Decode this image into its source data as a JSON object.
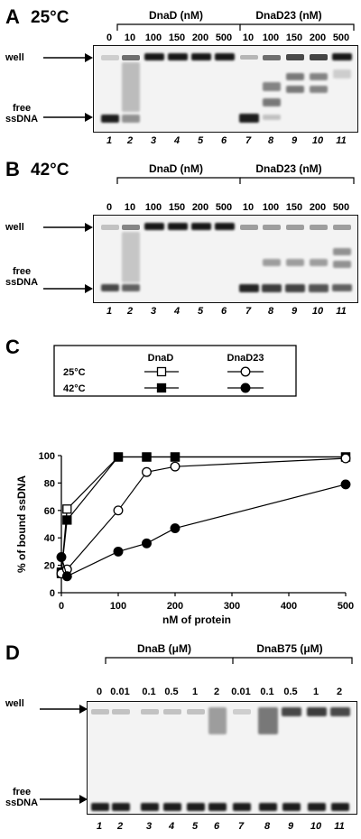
{
  "panelA": {
    "letter": "A",
    "temp": "25°C",
    "group1": "DnaD (nM)",
    "group2": "DnaD23 (nM)",
    "concs": [
      "0",
      "10",
      "100",
      "150",
      "200",
      "500",
      "10",
      "100",
      "150",
      "200",
      "500"
    ],
    "lanes": [
      "1",
      "2",
      "3",
      "4",
      "5",
      "6",
      "7",
      "8",
      "9",
      "10",
      "11"
    ],
    "well": "well",
    "free1": "free",
    "free2": "ssDNA"
  },
  "panelB": {
    "letter": "B",
    "temp": "42°C",
    "group1": "DnaD (nM)",
    "group2": "DnaD23 (nM)",
    "concs": [
      "0",
      "10",
      "100",
      "150",
      "200",
      "500",
      "10",
      "100",
      "150",
      "200",
      "500"
    ],
    "lanes": [
      "1",
      "2",
      "3",
      "4",
      "5",
      "6",
      "7",
      "8",
      "9",
      "10",
      "11"
    ],
    "well": "well",
    "free1": "free",
    "free2": "ssDNA"
  },
  "panelC": {
    "letter": "C",
    "legend": {
      "col1": "DnaD",
      "col2": "DnaD23",
      "row1": "25°C",
      "row2": "42°C"
    }
  },
  "chart_data": {
    "type": "line",
    "xlabel": "nM of protein",
    "ylabel": "% of bound ssDNA",
    "xlim": [
      0,
      500
    ],
    "ylim": [
      0,
      100
    ],
    "xticks": [
      0,
      100,
      200,
      300,
      400,
      500
    ],
    "yticks": [
      0,
      20,
      40,
      60,
      80,
      100
    ],
    "grid": false,
    "series": [
      {
        "name": "DnaD 25°C",
        "marker": "open-square",
        "x": [
          0,
          10,
          100,
          150,
          200,
          500
        ],
        "y": [
          14,
          61,
          99,
          99,
          99,
          99
        ]
      },
      {
        "name": "DnaD 42°C",
        "marker": "filled-square",
        "x": [
          0,
          10,
          100,
          150,
          200,
          500
        ],
        "y": [
          15,
          53,
          99,
          99,
          99,
          99
        ]
      },
      {
        "name": "DnaD23 25°C",
        "marker": "open-circle",
        "x": [
          0,
          10,
          100,
          150,
          200,
          500
        ],
        "y": [
          14,
          17,
          60,
          88,
          92,
          98
        ]
      },
      {
        "name": "DnaD23 42°C",
        "marker": "filled-circle",
        "x": [
          0,
          10,
          100,
          150,
          200,
          500
        ],
        "y": [
          26,
          12,
          30,
          36,
          47,
          79
        ]
      }
    ]
  },
  "panelD": {
    "letter": "D",
    "group1": "DnaB (μM)",
    "group2": "DnaB75 (μM)",
    "concs": [
      "0",
      "0.01",
      "0.1",
      "0.5",
      "1",
      "2",
      "0.01",
      "0.1",
      "0.5",
      "1",
      "2"
    ],
    "lanes": [
      "1",
      "2",
      "3",
      "4",
      "5",
      "6",
      "7",
      "8",
      "9",
      "10",
      "11"
    ],
    "well": "well",
    "free1": "free",
    "free2": "ssDNA"
  }
}
